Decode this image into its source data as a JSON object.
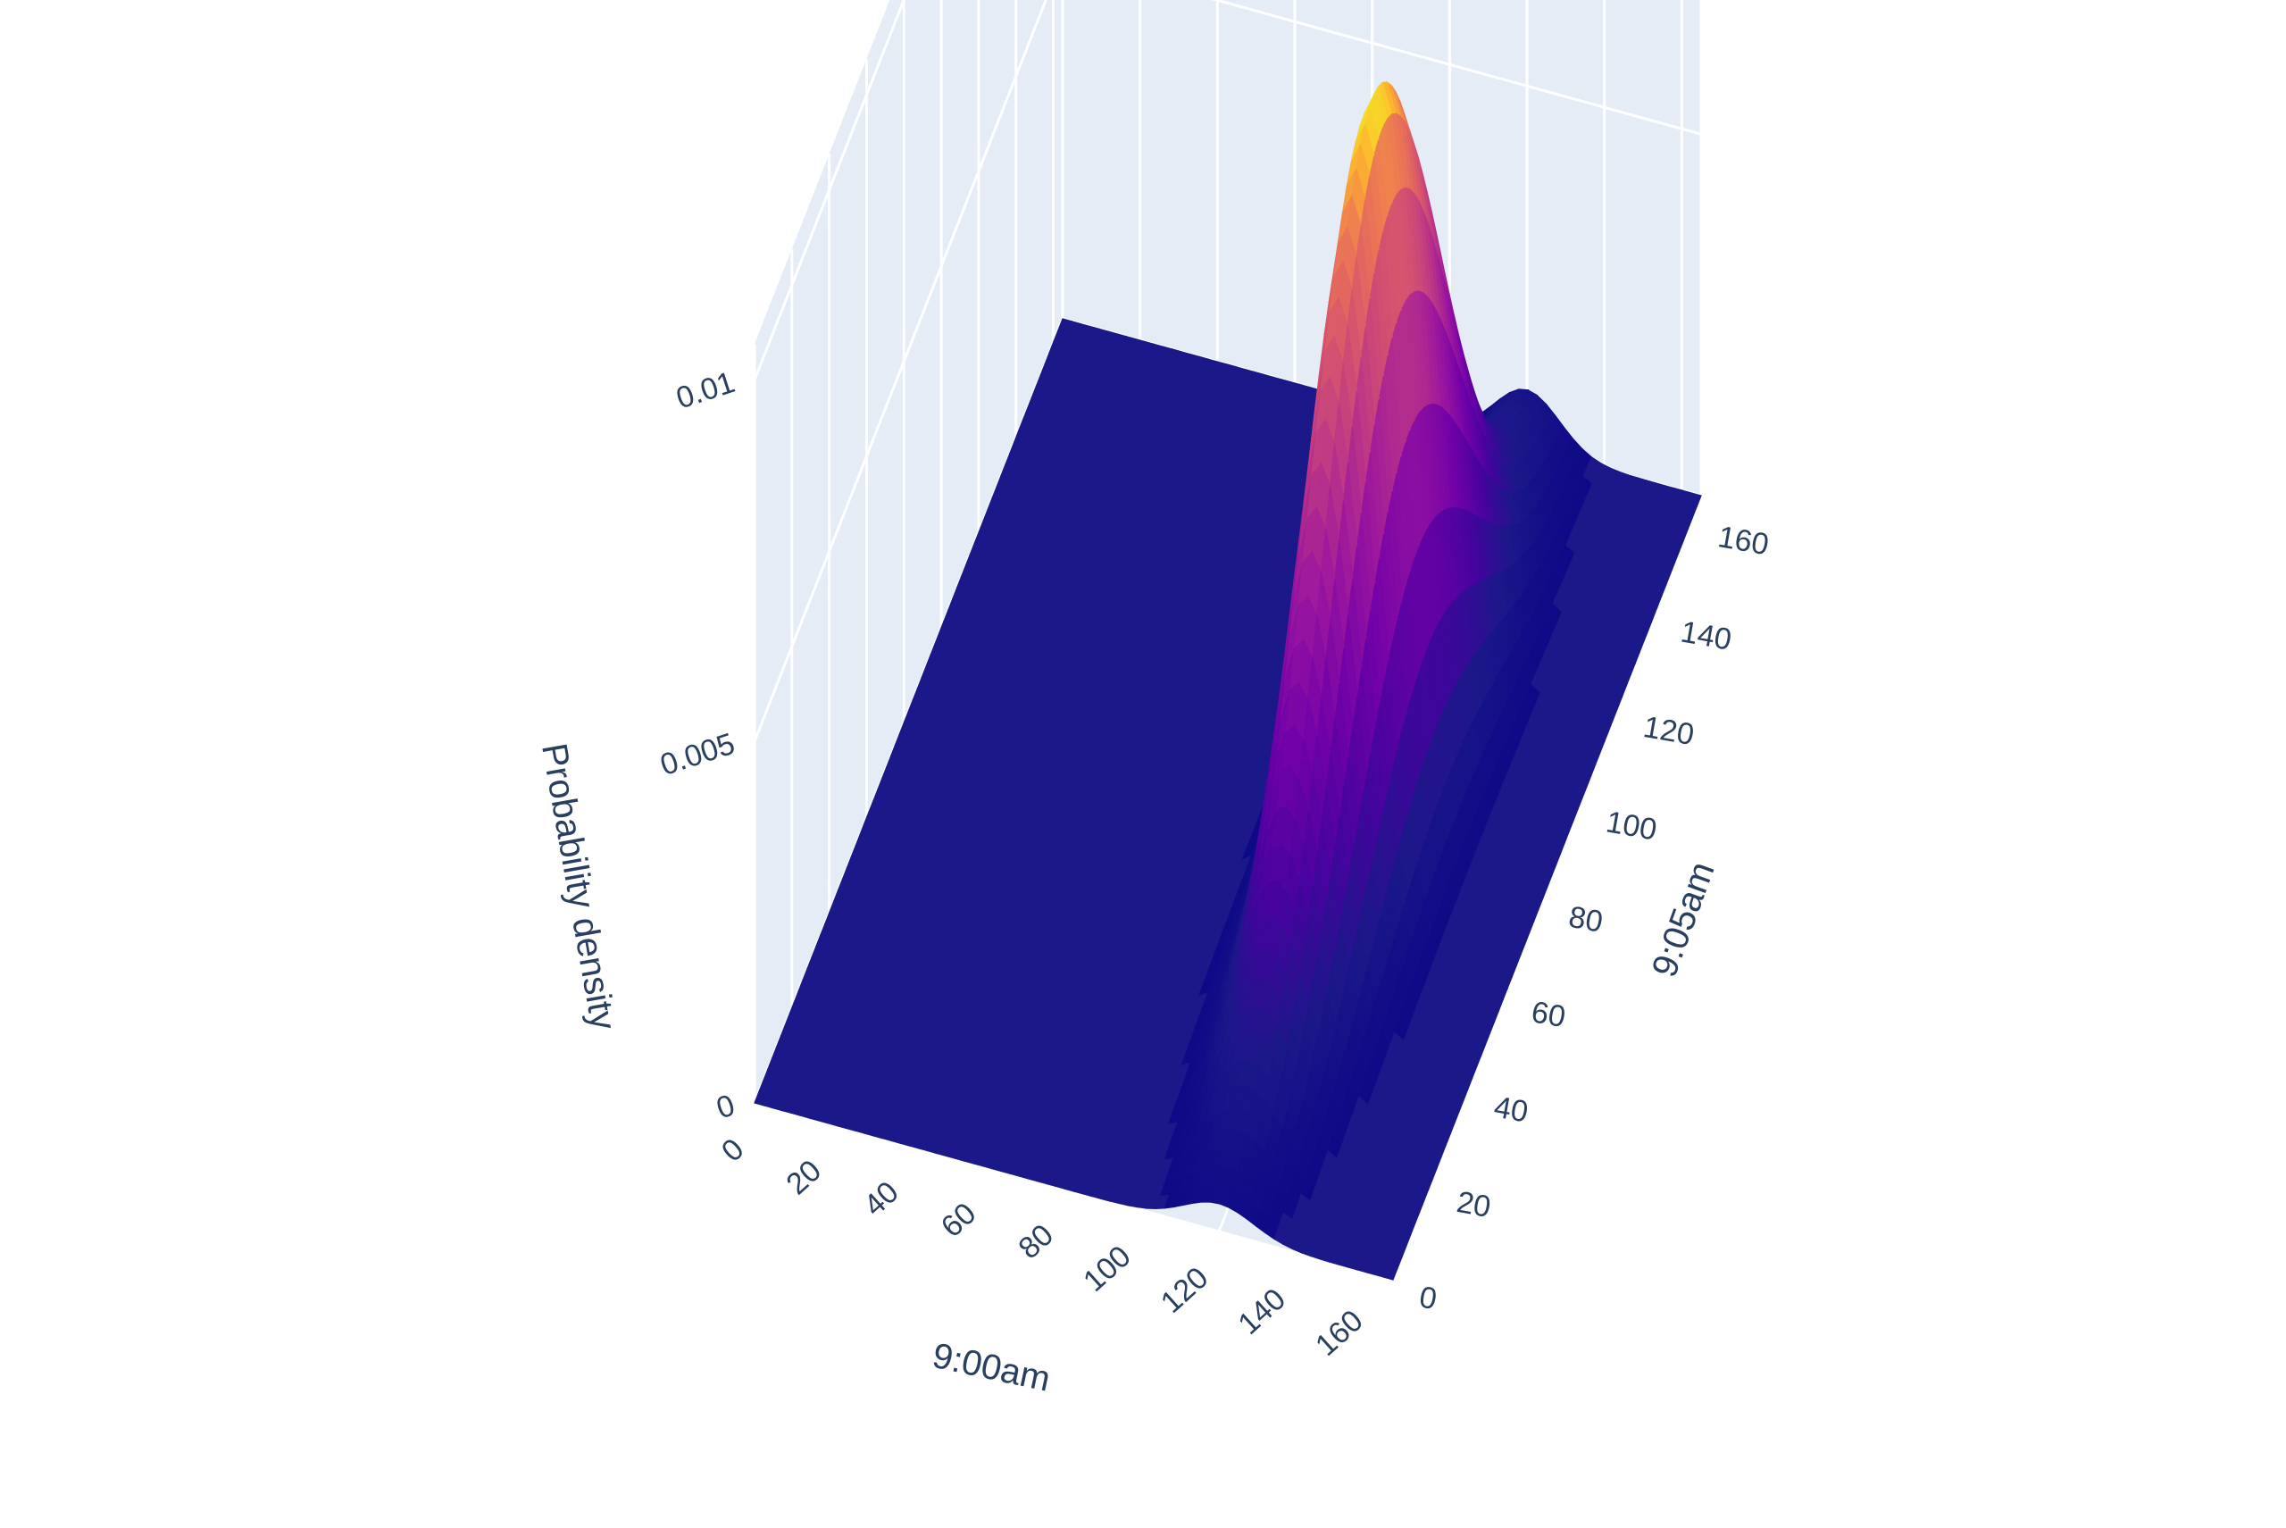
{
  "chart_data": {
    "type": "surface",
    "title": "",
    "xlabel": "9:00am",
    "ylabel": "9:05am",
    "zlabel": "Probability density",
    "x_ticks": [
      "0",
      "20",
      "40",
      "60",
      "80",
      "100",
      "120",
      "140",
      "160"
    ],
    "y_ticks": [
      "0",
      "20",
      "40",
      "60",
      "80",
      "100",
      "120",
      "140",
      "160"
    ],
    "z_ticks": [
      "0",
      "0.005",
      "0.01"
    ],
    "xlim": [
      0,
      165
    ],
    "ylim": [
      0,
      165
    ],
    "zlim": [
      0,
      0.0105
    ],
    "grid": true,
    "colorscale": "plasma",
    "colors": {
      "low": "#1b1889",
      "mid": "#9a1ea6",
      "high": "#f0f921",
      "pane": "#e5ecf6",
      "grid": "#ffffff",
      "text": "#2a3f5f"
    },
    "surface": {
      "peak": {
        "x": 120,
        "y": 82,
        "z": 0.0103
      },
      "ridge": "narrow along 9:00am, broad along 9:05am",
      "secondary_bump": {
        "x": 120,
        "y": 160,
        "z": 0.0005
      }
    }
  }
}
